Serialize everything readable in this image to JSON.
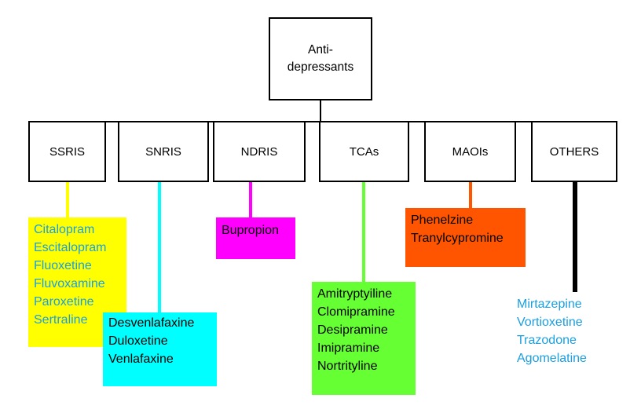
{
  "root": {
    "label": "Anti-\ndepressants"
  },
  "categories": [
    {
      "label": "SSRIS",
      "color": "#ffff00",
      "text_color": "#1a9fe0",
      "drugs": [
        "Citalopram",
        "Escitalopram",
        "Fluoxetine",
        "Fluvoxamine",
        "Paroxetine",
        "Sertraline"
      ]
    },
    {
      "label": "SNRIS",
      "color": "#00ffff",
      "text_color": "#000000",
      "drugs": [
        "Desvenlafaxine",
        "Duloxetine",
        "Venlafaxine"
      ]
    },
    {
      "label": "NDRIS",
      "color": "#ff00ff",
      "text_color": "#000000",
      "drugs": [
        "Bupropion"
      ]
    },
    {
      "label": "TCAs",
      "color": "#66ff33",
      "text_color": "#000000",
      "drugs": [
        "Amitryptyiline",
        "Clomipramine",
        "Desipramine",
        "Imipramine",
        "Nortrityline"
      ]
    },
    {
      "label": "MAOIs",
      "color": "#ff5500",
      "text_color": "#000000",
      "drugs": [
        "Phenelzine",
        "Tranylcypromine"
      ]
    },
    {
      "label": "OTHERS",
      "color": "#000000",
      "text_color": "#1a9fe0",
      "drugs": [
        "Mirtazepine",
        "Vortioxetine",
        "Trazodone",
        "Agomelatine"
      ]
    }
  ]
}
